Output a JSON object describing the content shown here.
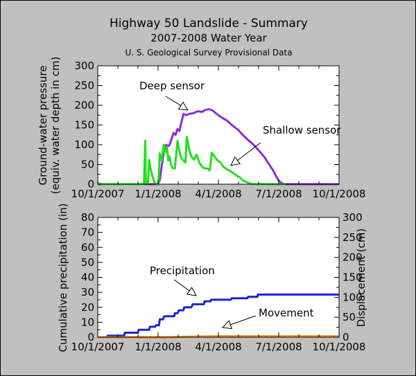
{
  "header": {
    "title": "Highway 50 Landslide - Summary",
    "subtitle": "2007-2008 Water Year",
    "source": "U. S. Geological Survey Provisional Data"
  },
  "colors": {
    "background": "#c0c0c0",
    "deep": "#8a2be2",
    "shallow": "#22e01f",
    "precip": "#1a22d8",
    "movement": "#f08a1e"
  },
  "chart_data": [
    {
      "type": "line",
      "title": "",
      "x_ticks": [
        "10/1/2007",
        "1/1/2008",
        "4/1/2008",
        "7/1/2008",
        "10/1/2008"
      ],
      "xlim": [
        "2007-10-01",
        "2008-10-01"
      ],
      "ylabel": "Ground-water pressure",
      "ylabel2": "(equiv. water depth in cm)",
      "ylim": [
        0,
        300
      ],
      "y_ticks": [
        "0",
        "50",
        "100",
        "150",
        "200",
        "250",
        "300"
      ],
      "legend": "none",
      "grid": false,
      "annotations": [
        "Deep sensor",
        "Shallow sensor"
      ],
      "series": [
        {
          "name": "Deep sensor",
          "x": [
            "2007-10-01",
            "2007-12-31",
            "2008-01-01",
            "2008-01-03",
            "2008-01-06",
            "2008-01-09",
            "2008-01-13",
            "2008-01-15",
            "2008-01-18",
            "2008-01-21",
            "2008-01-24",
            "2008-01-27",
            "2008-01-30",
            "2008-02-02",
            "2008-02-04",
            "2008-02-08",
            "2008-02-12",
            "2008-02-17",
            "2008-02-23",
            "2008-03-01",
            "2008-03-07",
            "2008-03-12",
            "2008-03-18",
            "2008-03-23",
            "2008-03-28",
            "2008-04-01",
            "2008-04-05",
            "2008-04-10",
            "2008-04-15",
            "2008-04-20",
            "2008-04-25",
            "2008-05-01",
            "2008-05-06",
            "2008-05-11",
            "2008-05-16",
            "2008-05-21",
            "2008-05-26",
            "2008-05-31",
            "2008-06-05",
            "2008-06-10",
            "2008-06-15",
            "2008-06-19",
            "2008-06-23",
            "2008-06-27",
            "2008-07-01",
            "2008-07-04",
            "2008-07-07",
            "2008-07-10",
            "2008-07-13",
            "2008-07-18",
            "2008-07-25",
            "2008-08-10",
            "2008-09-10",
            "2008-10-01"
          ],
          "y": [
            0,
            0,
            3,
            10,
            45,
            80,
            100,
            95,
            100,
            115,
            130,
            125,
            140,
            135,
            150,
            178,
            175,
            178,
            180,
            185,
            183,
            188,
            190,
            187,
            180,
            175,
            170,
            165,
            160,
            152,
            145,
            138,
            128,
            120,
            112,
            105,
            97,
            88,
            78,
            68,
            55,
            45,
            35,
            22,
            10,
            5,
            2,
            0,
            0,
            0,
            0,
            0,
            0,
            0
          ]
        },
        {
          "name": "Shallow sensor",
          "x": [
            "2007-10-01",
            "2007-10-04",
            "2007-10-07",
            "2007-12-10",
            "2007-12-12",
            "2007-12-13",
            "2007-12-16",
            "2007-12-18",
            "2007-12-20",
            "2007-12-23",
            "2007-12-26",
            "2007-12-29",
            "2008-01-01",
            "2008-01-03",
            "2008-01-06",
            "2008-01-09",
            "2008-01-11",
            "2008-01-14",
            "2008-01-16",
            "2008-01-18",
            "2008-01-20",
            "2008-01-23",
            "2008-01-26",
            "2008-01-30",
            "2008-02-03",
            "2008-02-05",
            "2008-02-08",
            "2008-02-11",
            "2008-02-13",
            "2008-02-17",
            "2008-02-20",
            "2008-02-24",
            "2008-02-28",
            "2008-03-03",
            "2008-03-07",
            "2008-03-11",
            "2008-03-15",
            "2008-03-19",
            "2008-03-22",
            "2008-03-26",
            "2008-03-31",
            "2008-04-04",
            "2008-04-08",
            "2008-04-12",
            "2008-04-17",
            "2008-04-22",
            "2008-04-26",
            "2008-04-30",
            "2008-05-03",
            "2008-05-08",
            "2008-05-14",
            "2008-05-22",
            "2008-06-15",
            "2008-07-10",
            "2008-07-12"
          ],
          "y": [
            3,
            2,
            0,
            0,
            110,
            5,
            0,
            62,
            40,
            20,
            5,
            0,
            0,
            78,
            60,
            100,
            80,
            95,
            60,
            70,
            50,
            40,
            40,
            110,
            75,
            65,
            60,
            55,
            120,
            85,
            70,
            62,
            75,
            55,
            45,
            40,
            40,
            35,
            80,
            70,
            60,
            55,
            45,
            40,
            35,
            30,
            25,
            20,
            18,
            10,
            5,
            0,
            0,
            0,
            0
          ]
        }
      ]
    },
    {
      "type": "line",
      "title": "",
      "x_ticks": [
        "10/1/2007",
        "1/1/2008",
        "4/1/2008",
        "7/1/2008",
        "10/1/2008"
      ],
      "xlim": [
        "2007-10-01",
        "2008-10-01"
      ],
      "ylabel": "Cumulative precipitation (in)",
      "ylim": [
        0,
        80
      ],
      "y_ticks": [
        "0",
        "10",
        "20",
        "30",
        "40",
        "50",
        "60",
        "70",
        "80"
      ],
      "y2label": "Displacement (cm)",
      "y2lim": [
        0,
        300
      ],
      "y2_ticks": [
        "0",
        "50",
        "100",
        "150",
        "200",
        "250",
        "300"
      ],
      "legend": "none",
      "grid": false,
      "annotations": [
        "Precipitation",
        "Movement"
      ],
      "series": [
        {
          "name": "Precipitation",
          "axis": "left",
          "x": [
            "2007-10-01",
            "2007-10-15",
            "2007-10-16",
            "2007-11-10",
            "2007-11-11",
            "2007-12-01",
            "2007-12-02",
            "2007-12-18",
            "2007-12-19",
            "2007-12-27",
            "2007-12-28",
            "2008-01-02",
            "2008-01-03",
            "2008-01-08",
            "2008-01-09",
            "2008-01-10",
            "2008-01-25",
            "2008-01-26",
            "2008-01-30",
            "2008-02-01",
            "2008-02-08",
            "2008-02-09",
            "2008-02-20",
            "2008-02-21",
            "2008-02-22",
            "2008-03-10",
            "2008-03-11",
            "2008-03-20",
            "2008-03-21",
            "2008-04-20",
            "2008-04-21",
            "2008-05-15",
            "2008-05-16",
            "2008-05-30",
            "2008-05-31",
            "2008-10-01"
          ],
          "y": [
            0,
            0,
            1,
            1,
            3,
            3,
            5,
            5,
            7,
            7,
            8,
            8,
            12,
            12,
            13,
            14,
            14,
            16,
            16,
            18,
            18,
            20,
            20,
            21,
            22,
            22,
            24,
            24,
            25,
            25,
            26,
            26,
            27,
            27,
            28.5,
            28.5
          ]
        },
        {
          "name": "Movement",
          "axis": "right",
          "x": [
            "2007-10-01",
            "2008-01-15",
            "2008-02-10",
            "2008-03-15",
            "2008-04-01",
            "2008-05-01",
            "2008-10-01"
          ],
          "y": [
            0,
            0,
            1,
            2,
            2.5,
            2.5,
            2.5
          ]
        }
      ]
    }
  ]
}
